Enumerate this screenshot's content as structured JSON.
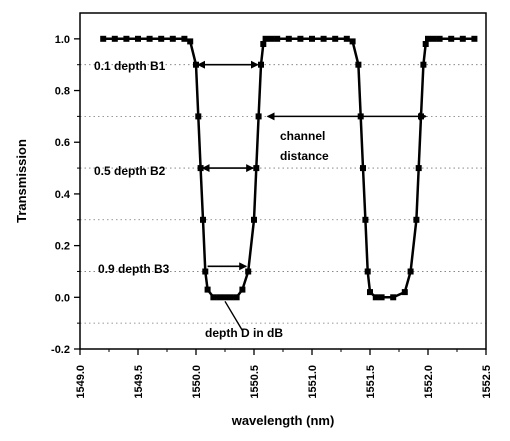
{
  "chart_data": {
    "type": "scatter",
    "xlabel": "wavelength (nm)",
    "ylabel": "Transmission",
    "xlim": [
      1549.0,
      1552.5
    ],
    "ylim": [
      -0.2,
      1.1
    ],
    "x_ticks": [
      1549.0,
      1549.5,
      1550.0,
      1550.5,
      1551.0,
      1551.5,
      1552.0,
      1552.5
    ],
    "y_ticks": [
      -0.2,
      0.0,
      0.2,
      0.4,
      0.6,
      0.8,
      1.0
    ],
    "x_tick_labels": [
      "1549.0",
      "1549.5",
      "1550.0",
      "1550.5",
      "1551.0",
      "1551.5",
      "1552.0",
      "1552.5"
    ],
    "y_tick_labels": [
      "-0.2",
      "0.0",
      "0.2",
      "0.4",
      "0.6",
      "0.8",
      "1.0"
    ],
    "grid": "horizontal dotted",
    "reference_lines_y": [
      0.9,
      0.7,
      0.5,
      0.3,
      0.1,
      -0.1
    ],
    "series": [
      {
        "color": "#000000",
        "x": [
          1549.2,
          1549.3,
          1549.4,
          1549.5,
          1549.6,
          1549.7,
          1549.8,
          1549.9,
          1549.95,
          1550.0,
          1550.02,
          1550.04,
          1550.06,
          1550.08,
          1550.1,
          1550.15,
          1550.2,
          1550.25,
          1550.3,
          1550.35,
          1550.4,
          1550.45,
          1550.5,
          1550.52,
          1550.54,
          1550.56,
          1550.58,
          1550.6,
          1550.65,
          1550.7,
          1550.8,
          1550.9,
          1551.0,
          1551.1,
          1551.2,
          1551.3,
          1551.35,
          1551.4,
          1551.42,
          1551.44,
          1551.46,
          1551.48,
          1551.5,
          1551.55,
          1551.6,
          1551.7,
          1551.8,
          1551.85,
          1551.9,
          1551.92,
          1551.94,
          1551.96,
          1551.98,
          1552.0,
          1552.05,
          1552.1,
          1552.2,
          1552.3,
          1552.4
        ],
        "y": [
          1.0,
          1.0,
          1.0,
          1.0,
          1.0,
          1.0,
          1.0,
          1.0,
          0.99,
          0.9,
          0.7,
          0.5,
          0.3,
          0.1,
          0.03,
          0.0,
          0.0,
          0.0,
          0.0,
          0.0,
          0.03,
          0.1,
          0.3,
          0.5,
          0.7,
          0.9,
          0.98,
          1.0,
          1.0,
          1.0,
          1.0,
          1.0,
          1.0,
          1.0,
          1.0,
          1.0,
          0.99,
          0.9,
          0.7,
          0.5,
          0.3,
          0.1,
          0.02,
          0.0,
          0.0,
          0.0,
          0.02,
          0.1,
          0.3,
          0.5,
          0.7,
          0.9,
          0.98,
          1.0,
          1.0,
          1.0,
          1.0,
          1.0,
          1.0
        ]
      }
    ],
    "annotations": [
      {
        "text": "0.1 depth B1",
        "arrow": "double",
        "x_from": 1550.0,
        "x_to": 1550.55,
        "y": 0.9
      },
      {
        "text": "0.5 depth B2",
        "arrow": "double",
        "x_from": 1550.04,
        "x_to": 1550.51,
        "y": 0.5
      },
      {
        "text": "0.9 depth B3",
        "arrow": "single",
        "x_from": 1550.1,
        "x_to": 1550.45,
        "y": 0.12
      },
      {
        "text_lines": [
          "channel",
          "distance"
        ],
        "arrow": "double",
        "x_from": 1550.6,
        "x_to": 1552.0,
        "y": 0.7
      },
      {
        "text": "depth D in dB",
        "arrow": "leader",
        "point_x": 1550.25,
        "point_y": 0.0,
        "text_y": -0.14
      }
    ]
  }
}
